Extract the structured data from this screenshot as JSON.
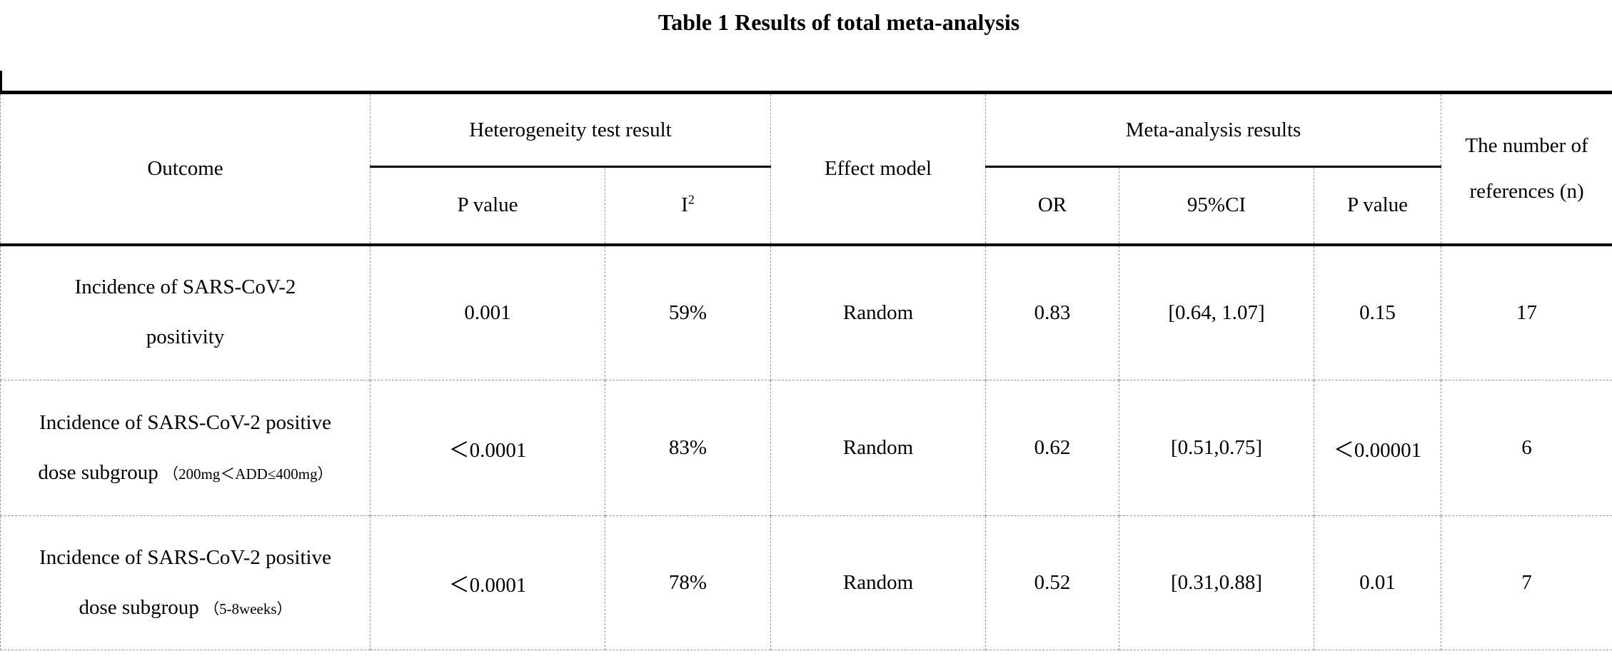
{
  "page": {
    "title": "Table 1 Results of total meta-analysis"
  },
  "colors": {
    "text": "#000000",
    "background": "#ffffff",
    "solid_rule": "#000000",
    "dashed_rule": "#999999"
  },
  "table": {
    "header": {
      "outcome": "Outcome",
      "het_group": "Heterogeneity test result",
      "het_p": "P value",
      "i2": {
        "base": "I",
        "sup": "2"
      },
      "model": "Effect model",
      "meta_group": "Meta-analysis results",
      "or": "OR",
      "ci": "95%CI",
      "meta_p": "P value",
      "n_refs": "The number of references (n)"
    },
    "rows": [
      {
        "outcome": {
          "line1": "Incidence of SARS-CoV-2",
          "line2": "positivity",
          "note": ""
        },
        "het_p": "0.001",
        "i2": "59%",
        "model": "Random",
        "or": "0.83",
        "ci": "[0.64, 1.07]",
        "meta_p": "0.15",
        "n": "17"
      },
      {
        "outcome": {
          "line1": "Incidence of SARS-CoV-2 positive",
          "line2": "dose subgroup ",
          "note": "（200mg＜ADD≤400mg）"
        },
        "het_p": "＜0.0001",
        "i2": "83%",
        "model": "Random",
        "or": "0.62",
        "ci": "[0.51,0.75]",
        "meta_p": "＜0.00001",
        "n": "6"
      },
      {
        "outcome": {
          "line1": "Incidence of SARS-CoV-2 positive",
          "line2": "dose subgroup ",
          "note": "（5-8weeks）"
        },
        "het_p": "＜0.0001",
        "i2": "78%",
        "model": "Random",
        "or": "0.52",
        "ci": "[0.31,0.88]",
        "meta_p": "0.01",
        "n": "7"
      }
    ]
  }
}
